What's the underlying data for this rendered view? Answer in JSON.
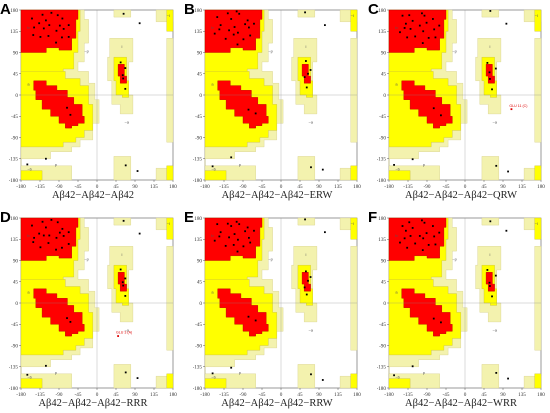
{
  "figure": {
    "panels": [
      {
        "letter": "A",
        "caption": "Aβ42−Aβ42−Aβ42",
        "outlier": ""
      },
      {
        "letter": "B",
        "caption": "Aβ42−Aβ42−Aβ42−ERW",
        "outlier": ""
      },
      {
        "letter": "C",
        "caption": "Aβ42−Aβ42−Aβ42−QRW",
        "outlier": "GLU 11 (C)"
      },
      {
        "letter": "D",
        "caption": "Aβ42−Aβ42−Aβ42−RRR",
        "outlier": "GLU 3 (A)"
      },
      {
        "letter": "E",
        "caption": "Aβ42−Aβ42−Aβ42−RRW",
        "outlier": ""
      },
      {
        "letter": "F",
        "caption": "Aβ42−Aβ42−Aβ42−WRR",
        "outlier": ""
      }
    ],
    "x_ticks": [
      "-180",
      "-135",
      "-90",
      "-45",
      "0",
      "45",
      "90",
      "135",
      "180"
    ],
    "y_ticks": [
      "180",
      "135",
      "90",
      "45",
      "0",
      "-45",
      "-90",
      "-135",
      "-180"
    ],
    "region_labels": [
      "b",
      "a",
      "l",
      "p",
      "~b",
      "~a",
      "~l",
      "~p"
    ],
    "colors": {
      "core": "#ff0000",
      "allowed": "#ffff00",
      "generous": "#f3f2ae",
      "disallowed": "#ffffff",
      "point": "#000000"
    }
  }
}
